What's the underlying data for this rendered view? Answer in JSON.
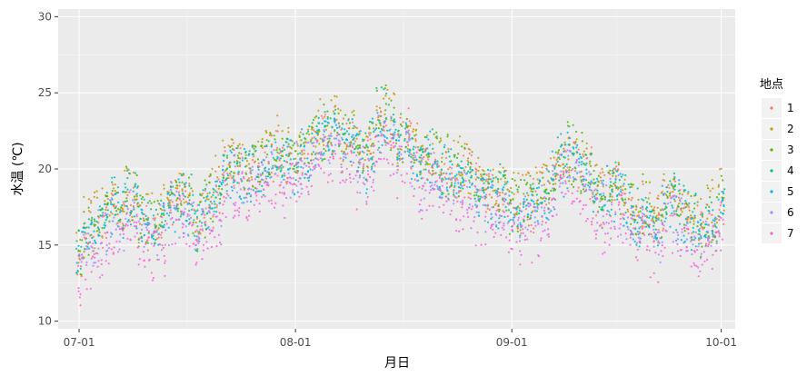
{
  "chart_data": {
    "type": "scatter",
    "title": "",
    "xlabel": "月日",
    "ylabel": "水温 (℃)",
    "x_ticks": [
      "07-01",
      "08-01",
      "09-01",
      "10-01"
    ],
    "y_ticks": [
      10,
      15,
      20,
      25,
      30
    ],
    "xlim": [
      "2023-06-28",
      "2023-10-03"
    ],
    "ylim": [
      9.5,
      30.5
    ],
    "grid": true,
    "legend": {
      "title": "地点",
      "position": "right"
    },
    "daily_range_note": "each point cloud spans the daily min-max; values below are daily means",
    "x_dates": [
      "07-01",
      "07-02",
      "07-03",
      "07-04",
      "07-05",
      "07-06",
      "07-07",
      "07-08",
      "07-09",
      "07-10",
      "07-11",
      "07-12",
      "07-13",
      "07-14",
      "07-15",
      "07-16",
      "07-17",
      "07-18",
      "07-19",
      "07-20",
      "07-21",
      "07-22",
      "07-23",
      "07-24",
      "07-25",
      "07-26",
      "07-27",
      "07-28",
      "07-29",
      "07-30",
      "07-31",
      "08-01",
      "08-02",
      "08-03",
      "08-04",
      "08-05",
      "08-06",
      "08-07",
      "08-08",
      "08-09",
      "08-10",
      "08-11",
      "08-12",
      "08-13",
      "08-14",
      "08-15",
      "08-16",
      "08-17",
      "08-18",
      "08-19",
      "08-20",
      "08-21",
      "08-22",
      "08-23",
      "08-24",
      "08-25",
      "08-26",
      "08-27",
      "08-28",
      "08-29",
      "08-30",
      "08-31",
      "09-01",
      "09-02",
      "09-03",
      "09-04",
      "09-05",
      "09-06",
      "09-07",
      "09-08",
      "09-09",
      "09-10",
      "09-11",
      "09-12",
      "09-13",
      "09-14",
      "09-15",
      "09-16",
      "09-17",
      "09-18",
      "09-19",
      "09-20",
      "09-21",
      "09-22",
      "09-23",
      "09-24",
      "09-25",
      "09-26",
      "09-27",
      "09-28",
      "09-29",
      "09-30",
      "10-01"
    ],
    "series": [
      {
        "name": "1",
        "color": "#F8766D",
        "offset": 0.3,
        "values": [
          14.0,
          15.2,
          15.6,
          16.3,
          16.8,
          17.4,
          16.6,
          17.8,
          17.5,
          16.2,
          16.1,
          15.9,
          16.5,
          17.4,
          17.8,
          17.7,
          17.1,
          16.2,
          17.0,
          17.6,
          18.0,
          19.6,
          19.9,
          19.8,
          19.2,
          19.5,
          19.9,
          20.4,
          20.8,
          20.3,
          20.6,
          20.1,
          20.5,
          20.9,
          21.7,
          22.1,
          21.8,
          22.4,
          21.6,
          21.9,
          20.8,
          20.3,
          21.1,
          22.8,
          23.1,
          22.5,
          21.4,
          21.9,
          20.7,
          19.9,
          20.4,
          20.2,
          19.7,
          19.6,
          18.9,
          19.1,
          19.4,
          18.3,
          18.5,
          18.1,
          17.8,
          17.9,
          17.2,
          16.8,
          17.4,
          17.6,
          17.9,
          18.3,
          19.1,
          20.1,
          20.5,
          20.2,
          19.8,
          19.4,
          18.2,
          17.6,
          18.3,
          18.6,
          17.5,
          16.9,
          16.4,
          17.1,
          16.2,
          15.8,
          17.4,
          17.9,
          17.1,
          16.6,
          16.0,
          15.6,
          16.1,
          16.3,
          17.6
        ]
      },
      {
        "name": "2",
        "color": "#C49A00",
        "offset": 0.9,
        "values": [
          14.0,
          15.2,
          15.6,
          16.3,
          16.8,
          17.4,
          16.6,
          17.8,
          17.5,
          16.2,
          16.1,
          15.9,
          16.5,
          17.4,
          17.8,
          17.7,
          17.1,
          16.2,
          17.0,
          17.6,
          18.0,
          19.6,
          19.9,
          19.8,
          19.2,
          19.5,
          19.9,
          20.4,
          20.8,
          20.3,
          20.6,
          20.1,
          20.5,
          20.9,
          21.7,
          22.1,
          21.8,
          22.4,
          21.6,
          21.9,
          20.8,
          20.3,
          21.1,
          22.8,
          23.1,
          22.5,
          21.4,
          21.9,
          20.7,
          19.9,
          20.4,
          20.2,
          19.7,
          19.6,
          18.9,
          19.1,
          19.4,
          18.3,
          18.5,
          18.1,
          17.8,
          17.9,
          17.2,
          16.8,
          17.4,
          17.6,
          17.9,
          18.3,
          19.1,
          20.1,
          20.5,
          20.2,
          19.8,
          19.4,
          18.2,
          17.6,
          18.3,
          18.6,
          17.5,
          16.9,
          16.4,
          17.1,
          16.2,
          15.8,
          17.4,
          17.9,
          17.1,
          16.6,
          16.0,
          15.6,
          16.1,
          16.3,
          17.6
        ]
      },
      {
        "name": "3",
        "color": "#53B400",
        "offset": 0.6,
        "values": [
          14.0,
          15.2,
          15.6,
          16.3,
          16.8,
          17.4,
          16.6,
          17.8,
          17.5,
          16.2,
          16.1,
          15.9,
          16.5,
          17.4,
          17.8,
          17.7,
          17.1,
          16.2,
          17.0,
          17.6,
          18.0,
          19.6,
          19.9,
          19.8,
          19.2,
          19.5,
          19.9,
          20.4,
          20.8,
          20.3,
          20.6,
          20.1,
          20.5,
          20.9,
          21.7,
          22.1,
          21.8,
          22.4,
          21.6,
          21.9,
          20.8,
          20.3,
          21.1,
          22.8,
          23.1,
          22.5,
          21.4,
          21.9,
          20.7,
          19.9,
          20.4,
          20.2,
          19.7,
          19.6,
          18.9,
          19.1,
          19.4,
          18.3,
          18.5,
          18.1,
          17.8,
          17.9,
          17.2,
          16.8,
          17.4,
          17.6,
          17.9,
          18.3,
          19.1,
          20.1,
          20.5,
          20.2,
          19.8,
          19.4,
          18.2,
          17.6,
          18.3,
          18.6,
          17.5,
          16.9,
          16.4,
          17.1,
          16.2,
          15.8,
          17.4,
          17.9,
          17.1,
          16.6,
          16.0,
          15.6,
          16.1,
          16.3,
          17.6
        ]
      },
      {
        "name": "4",
        "color": "#00C094",
        "offset": 0.4,
        "values": [
          14.0,
          15.2,
          15.6,
          16.3,
          16.8,
          17.4,
          16.6,
          17.8,
          17.5,
          16.2,
          16.1,
          15.9,
          16.5,
          17.4,
          17.8,
          17.7,
          17.1,
          16.2,
          17.0,
          17.6,
          18.0,
          19.6,
          19.9,
          19.8,
          19.2,
          19.5,
          19.9,
          20.4,
          20.8,
          20.3,
          20.6,
          20.1,
          20.5,
          20.9,
          21.7,
          22.1,
          21.8,
          22.4,
          21.6,
          21.9,
          20.8,
          20.3,
          21.1,
          22.8,
          23.1,
          22.5,
          21.4,
          21.9,
          20.7,
          19.9,
          20.4,
          20.2,
          19.7,
          19.6,
          18.9,
          19.1,
          19.4,
          18.3,
          18.5,
          18.1,
          17.8,
          17.9,
          17.2,
          16.8,
          17.4,
          17.6,
          17.9,
          18.3,
          19.1,
          20.1,
          20.5,
          20.2,
          19.8,
          19.4,
          18.2,
          17.6,
          18.3,
          18.6,
          17.5,
          16.9,
          16.4,
          17.1,
          16.2,
          15.8,
          17.4,
          17.9,
          17.1,
          16.6,
          16.0,
          15.6,
          16.1,
          16.3,
          17.6
        ]
      },
      {
        "name": "5",
        "color": "#00B6EB",
        "offset": 0.1,
        "values": [
          14.0,
          15.2,
          15.6,
          16.3,
          16.8,
          17.4,
          16.6,
          17.8,
          17.5,
          16.2,
          16.1,
          15.9,
          16.5,
          17.4,
          17.8,
          17.7,
          17.1,
          16.2,
          17.0,
          17.6,
          18.0,
          19.6,
          19.9,
          19.8,
          19.2,
          19.5,
          19.9,
          20.4,
          20.8,
          20.3,
          20.6,
          20.1,
          20.5,
          20.9,
          21.7,
          22.1,
          21.8,
          22.4,
          21.6,
          21.9,
          20.8,
          20.3,
          21.1,
          22.8,
          23.1,
          22.5,
          21.4,
          21.9,
          20.7,
          19.9,
          20.4,
          20.2,
          19.7,
          19.6,
          18.9,
          19.1,
          19.4,
          18.3,
          18.5,
          18.1,
          17.8,
          17.9,
          17.2,
          16.8,
          17.4,
          17.6,
          17.9,
          18.3,
          19.1,
          20.1,
          20.5,
          20.2,
          19.8,
          19.4,
          18.2,
          17.6,
          18.3,
          18.6,
          17.5,
          16.9,
          16.4,
          17.1,
          16.2,
          15.8,
          17.4,
          17.9,
          17.1,
          16.6,
          16.0,
          15.6,
          16.1,
          16.3,
          17.6
        ]
      },
      {
        "name": "6",
        "color": "#A58AFF",
        "offset": -0.5,
        "values": [
          14.0,
          15.2,
          15.6,
          16.3,
          16.8,
          17.4,
          16.6,
          17.8,
          17.5,
          16.2,
          16.1,
          15.9,
          16.5,
          17.4,
          17.8,
          17.7,
          17.1,
          16.2,
          17.0,
          17.6,
          18.0,
          19.6,
          19.9,
          19.8,
          19.2,
          19.5,
          19.9,
          20.4,
          20.8,
          20.3,
          20.6,
          20.1,
          20.5,
          20.9,
          21.7,
          22.1,
          21.8,
          22.4,
          21.6,
          21.9,
          20.8,
          20.3,
          21.1,
          22.8,
          23.1,
          22.5,
          21.4,
          21.9,
          20.7,
          19.9,
          20.4,
          20.2,
          19.7,
          19.6,
          18.9,
          19.1,
          19.4,
          18.3,
          18.5,
          18.1,
          17.8,
          17.9,
          17.2,
          16.8,
          17.4,
          17.6,
          17.9,
          18.3,
          19.1,
          20.1,
          20.5,
          20.2,
          19.8,
          19.4,
          18.2,
          17.6,
          18.3,
          18.6,
          17.5,
          16.9,
          16.4,
          17.1,
          16.2,
          15.8,
          17.4,
          17.9,
          17.1,
          16.6,
          16.0,
          15.6,
          16.1,
          16.3,
          17.6
        ]
      },
      {
        "name": "7",
        "color": "#FB61D7",
        "offset": -1.6,
        "values": [
          14.0,
          15.2,
          15.6,
          16.3,
          16.8,
          17.4,
          16.6,
          17.8,
          17.5,
          16.2,
          16.1,
          15.9,
          16.5,
          17.4,
          17.8,
          17.7,
          17.1,
          16.2,
          17.0,
          17.6,
          18.0,
          19.6,
          19.9,
          19.8,
          19.2,
          19.5,
          19.9,
          20.4,
          20.8,
          20.3,
          20.6,
          20.1,
          20.5,
          20.9,
          21.7,
          22.1,
          21.8,
          22.4,
          21.6,
          21.9,
          20.8,
          20.3,
          21.1,
          22.8,
          23.1,
          22.5,
          21.4,
          21.9,
          20.7,
          19.9,
          20.4,
          20.2,
          19.7,
          19.6,
          18.9,
          19.1,
          19.4,
          18.3,
          18.5,
          18.1,
          17.8,
          17.9,
          17.2,
          16.8,
          17.4,
          17.6,
          17.9,
          18.3,
          19.1,
          20.1,
          20.5,
          20.2,
          19.8,
          19.4,
          18.2,
          17.6,
          18.3,
          18.6,
          17.5,
          16.9,
          16.4,
          17.1,
          16.2,
          15.8,
          17.4,
          17.9,
          17.1,
          16.6,
          16.0,
          15.6,
          16.1,
          16.3,
          17.6
        ]
      }
    ]
  }
}
